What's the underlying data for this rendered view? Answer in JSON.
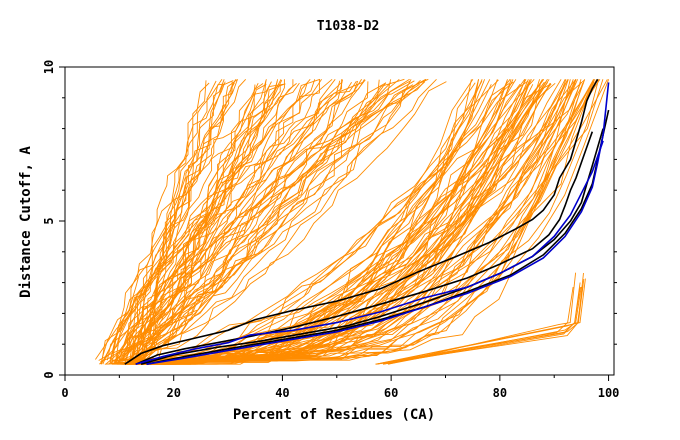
{
  "chart_data": {
    "type": "line",
    "title": "T1038-D2",
    "xlabel": "Percent of Residues (CA)",
    "ylabel": "Distance Cutoff, A",
    "xlim": [
      0,
      101
    ],
    "ylim": [
      0,
      10
    ],
    "xticks": [
      0,
      20,
      40,
      60,
      80,
      100
    ],
    "yticks": [
      0,
      5,
      10
    ],
    "grid": false,
    "colors": {
      "background_series": "#ff8c00",
      "highlight_black": "#000000",
      "highlight_blue": "#0000cc",
      "axes": "#000000"
    },
    "highlight_series": [
      {
        "color": "#000000",
        "x": [
          11,
          14,
          18,
          24,
          30,
          35,
          42,
          50,
          58,
          65,
          72,
          78,
          83,
          86,
          88,
          90,
          91,
          92,
          93,
          94,
          95,
          96,
          97,
          98
        ],
        "y": [
          0.35,
          0.7,
          0.95,
          1.2,
          1.45,
          1.8,
          2.1,
          2.4,
          2.8,
          3.35,
          3.85,
          4.3,
          4.75,
          5.05,
          5.35,
          5.85,
          6.4,
          6.7,
          7.0,
          7.6,
          8.2,
          8.9,
          9.3,
          9.6
        ]
      },
      {
        "color": "#000000",
        "x": [
          13,
          17,
          22,
          28,
          34,
          42,
          50,
          58,
          66,
          74,
          80,
          86,
          89,
          91,
          92,
          93,
          94,
          95,
          96,
          97
        ],
        "y": [
          0.35,
          0.65,
          0.85,
          1.05,
          1.25,
          1.55,
          1.9,
          2.3,
          2.7,
          3.15,
          3.6,
          4.1,
          4.55,
          5.05,
          5.5,
          6.0,
          6.4,
          6.9,
          7.4,
          7.9
        ]
      },
      {
        "color": "#000000",
        "x": [
          14,
          20,
          28,
          36,
          44,
          52,
          58,
          66,
          74,
          80,
          86,
          90,
          93,
          95,
          96,
          97,
          98,
          99
        ],
        "y": [
          0.35,
          0.65,
          0.9,
          1.1,
          1.35,
          1.6,
          1.9,
          2.35,
          2.85,
          3.3,
          3.85,
          4.4,
          5.0,
          5.6,
          6.2,
          6.8,
          7.4,
          8.0
        ]
      },
      {
        "color": "#000000",
        "x": [
          15,
          22,
          30,
          40,
          50,
          58,
          66,
          74,
          82,
          88,
          92,
          95,
          97,
          98,
          99,
          100
        ],
        "y": [
          0.35,
          0.6,
          0.85,
          1.15,
          1.45,
          1.8,
          2.2,
          2.7,
          3.25,
          3.9,
          4.6,
          5.4,
          6.2,
          7.0,
          7.8,
          8.6
        ]
      },
      {
        "color": "#0000cc",
        "x": [
          13,
          18,
          24,
          30,
          34,
          42,
          50,
          58,
          66,
          74,
          80,
          86,
          90,
          93,
          95,
          97,
          98,
          99
        ],
        "y": [
          0.35,
          0.6,
          0.85,
          1.05,
          1.3,
          1.45,
          1.7,
          2.05,
          2.5,
          2.85,
          3.3,
          3.85,
          4.5,
          5.2,
          5.9,
          6.6,
          7.1,
          7.6
        ]
      },
      {
        "color": "#0000cc",
        "x": [
          15,
          22,
          30,
          40,
          50,
          58,
          66,
          74,
          82,
          88,
          92,
          95,
          97,
          98,
          99,
          100
        ],
        "y": [
          0.35,
          0.55,
          0.8,
          1.1,
          1.4,
          1.75,
          2.2,
          2.65,
          3.2,
          3.8,
          4.5,
          5.3,
          6.1,
          6.9,
          7.8,
          9.5
        ]
      }
    ],
    "background_series_count": 160
  }
}
